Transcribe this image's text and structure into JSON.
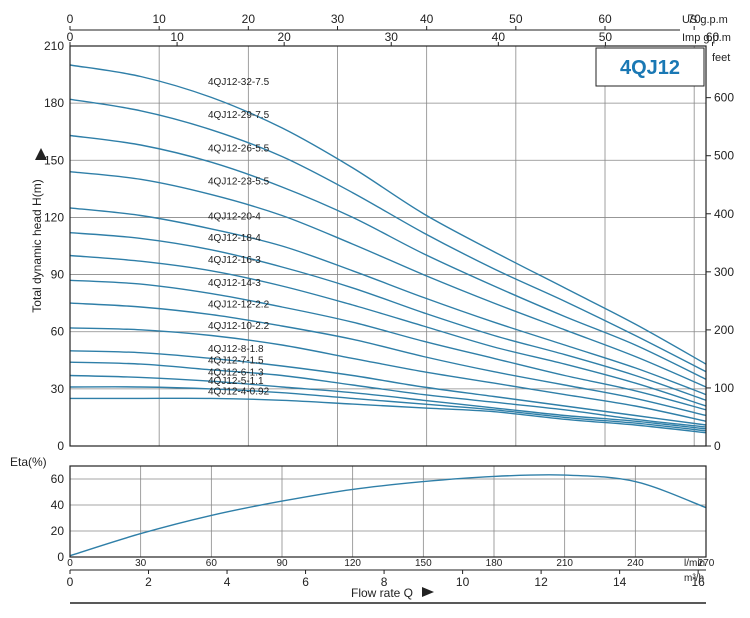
{
  "chart_data": [
    {
      "type": "line",
      "title": "4QJ12",
      "ylabel": "Total dynamic head H(m)",
      "xlabel": "Flow rate Q",
      "x_unit_primary": "l/min",
      "xlim": [
        0,
        270
      ],
      "ylim": [
        0,
        210
      ],
      "y_ticks": [
        0,
        30,
        60,
        90,
        120,
        150,
        180,
        210
      ],
      "x_ticks": [
        0,
        30,
        60,
        90,
        120,
        150,
        180,
        210,
        240,
        270
      ],
      "grid": true,
      "top_axes": [
        {
          "unit": "US g.p.m",
          "ticks": [
            0,
            10,
            20,
            30,
            40,
            50,
            60,
            70
          ],
          "factor": 3.7854
        },
        {
          "unit": "Imp g.p.m",
          "ticks": [
            0,
            10,
            20,
            30,
            40,
            50,
            60
          ],
          "factor": 4.546
        }
      ],
      "right_axis": {
        "unit": "feet",
        "ticks": [
          0,
          100,
          200,
          300,
          400,
          500,
          600
        ],
        "factor": 0.3048
      },
      "bottom_axis_2": {
        "unit": "m³/h",
        "ticks": [
          0,
          2,
          4,
          6,
          8,
          10,
          12,
          14,
          16
        ],
        "factor": 16.6667
      },
      "x": [
        0,
        30,
        60,
        90,
        120,
        150,
        180,
        210,
        240,
        270
      ],
      "series": [
        {
          "name": "4QJ12-32-7.5",
          "values": [
            200,
            194,
            183,
            167,
            146,
            122,
            102,
            83,
            64,
            43
          ]
        },
        {
          "name": "4QJ12-29-7.5",
          "values": [
            182,
            176,
            166,
            152,
            133,
            112,
            93,
            76,
            58,
            39
          ]
        },
        {
          "name": "4QJ12-26-5.5",
          "values": [
            163,
            158,
            149,
            136,
            120,
            101,
            84,
            68,
            53,
            35
          ]
        },
        {
          "name": "4QJ12-23-5.5",
          "values": [
            144,
            140,
            132,
            121,
            106,
            90,
            75,
            61,
            47,
            31
          ]
        },
        {
          "name": "4QJ12-20-4",
          "values": [
            125,
            121,
            114,
            105,
            92,
            78,
            65,
            53,
            41,
            27
          ]
        },
        {
          "name": "4QJ12-18-4",
          "values": [
            112,
            109,
            103,
            94,
            83,
            70,
            58,
            48,
            37,
            24
          ]
        },
        {
          "name": "4QJ12-16-3",
          "values": [
            100,
            97,
            92,
            84,
            74,
            63,
            52,
            43,
            33,
            21
          ]
        },
        {
          "name": "4QJ12-14-3",
          "values": [
            87,
            85,
            80,
            73,
            65,
            55,
            46,
            37,
            29,
            19
          ]
        },
        {
          "name": "4QJ12-12-2.2",
          "values": [
            75,
            73,
            69,
            63,
            56,
            47,
            39,
            32,
            25,
            16
          ]
        },
        {
          "name": "4QJ12-10-2.2",
          "values": [
            62,
            61,
            58,
            53,
            46,
            39,
            33,
            27,
            21,
            13
          ]
        },
        {
          "name": "4QJ12-8-1.8",
          "values": [
            50,
            49,
            46,
            42,
            37,
            31,
            26,
            21,
            16,
            11
          ]
        },
        {
          "name": "4QJ12-7-1.5",
          "values": [
            44,
            43,
            40,
            37,
            32,
            27,
            23,
            19,
            14,
            10
          ]
        },
        {
          "name": "4QJ12-6-1.3",
          "values": [
            37,
            36,
            34,
            31,
            28,
            24,
            20,
            16,
            13,
            9
          ]
        },
        {
          "name": "4QJ12-5-1.1",
          "values": [
            31,
            31,
            30,
            28,
            25,
            22,
            19,
            15,
            12,
            8
          ]
        },
        {
          "name": "4QJ12-4-0.92",
          "values": [
            25,
            25,
            25,
            24,
            22,
            20,
            18,
            14,
            11,
            7
          ]
        }
      ]
    },
    {
      "type": "line",
      "ylabel": "Eta(%)",
      "ylim": [
        0,
        70
      ],
      "y_ticks": [
        0,
        20,
        40,
        60
      ],
      "xlim": [
        0,
        270
      ],
      "grid": true,
      "x": [
        0,
        30,
        60,
        90,
        120,
        150,
        180,
        210,
        240,
        270
      ],
      "series": [
        {
          "values": [
            1,
            18,
            32,
            43,
            52,
            58,
            62,
            63,
            58,
            38
          ]
        }
      ]
    }
  ]
}
